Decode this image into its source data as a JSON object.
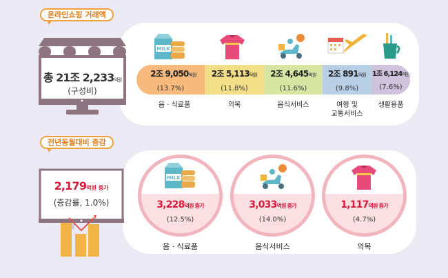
{
  "section1": {
    "title": "온라인쇼핑 거래액",
    "total": {
      "prefix": "총 21조 2,233",
      "unit": "억원",
      "sub": "(구성비)"
    },
    "categories": [
      {
        "icon": "milk-cookies-icon",
        "amount": "2조 9,050",
        "unit": "억원",
        "pct": "(13.7%)",
        "label": "음 · 식료품",
        "color": "#f7b97c",
        "share": 13.7
      },
      {
        "icon": "tshirt-icon",
        "amount": "2조 5,113",
        "unit": "억원",
        "pct": "(11.8%)",
        "label": "의복",
        "color": "#f3de88",
        "share": 11.8
      },
      {
        "icon": "delivery-scooter-icon",
        "amount": "2조 4,645",
        "unit": "억원",
        "pct": "(11.6%)",
        "label": "음식서비스",
        "color": "#d8e4a2",
        "share": 11.6
      },
      {
        "icon": "calendar-airplane-icon",
        "amount": "2조 891",
        "unit": "억원",
        "pct": "(9.8%)",
        "label": "여행 및\n교통서비스",
        "color": "#b9cfe6",
        "share": 9.8
      },
      {
        "icon": "toothbrush-cup-icon",
        "amount": "1조 6,124",
        "unit": "억원",
        "pct": "(7.6%)",
        "label": "생활용품",
        "color": "#cfc2dc",
        "share": 7.6
      }
    ]
  },
  "section2": {
    "title": "전년동월대비 증감",
    "total": {
      "amount": "2,179",
      "unit": "억원 증가",
      "sub": "(증감률, 1.0%)"
    },
    "items": [
      {
        "icon": "milk-cookies-icon",
        "amount": "3,228",
        "unit": "억원 증가",
        "pct": "(12.5%)",
        "label": "음 · 식료품"
      },
      {
        "icon": "delivery-scooter-icon",
        "amount": "3,033",
        "unit": "억원 증가",
        "pct": "(14.0%)",
        "label": "음식서비스"
      },
      {
        "icon": "tshirt-icon",
        "amount": "1,117",
        "unit": "억원 증가",
        "pct": "(4.7%)",
        "label": "의복"
      }
    ]
  },
  "colors": {
    "accent": "#f0a23a",
    "increase": "#d51c3a",
    "store": "#8e7380"
  }
}
